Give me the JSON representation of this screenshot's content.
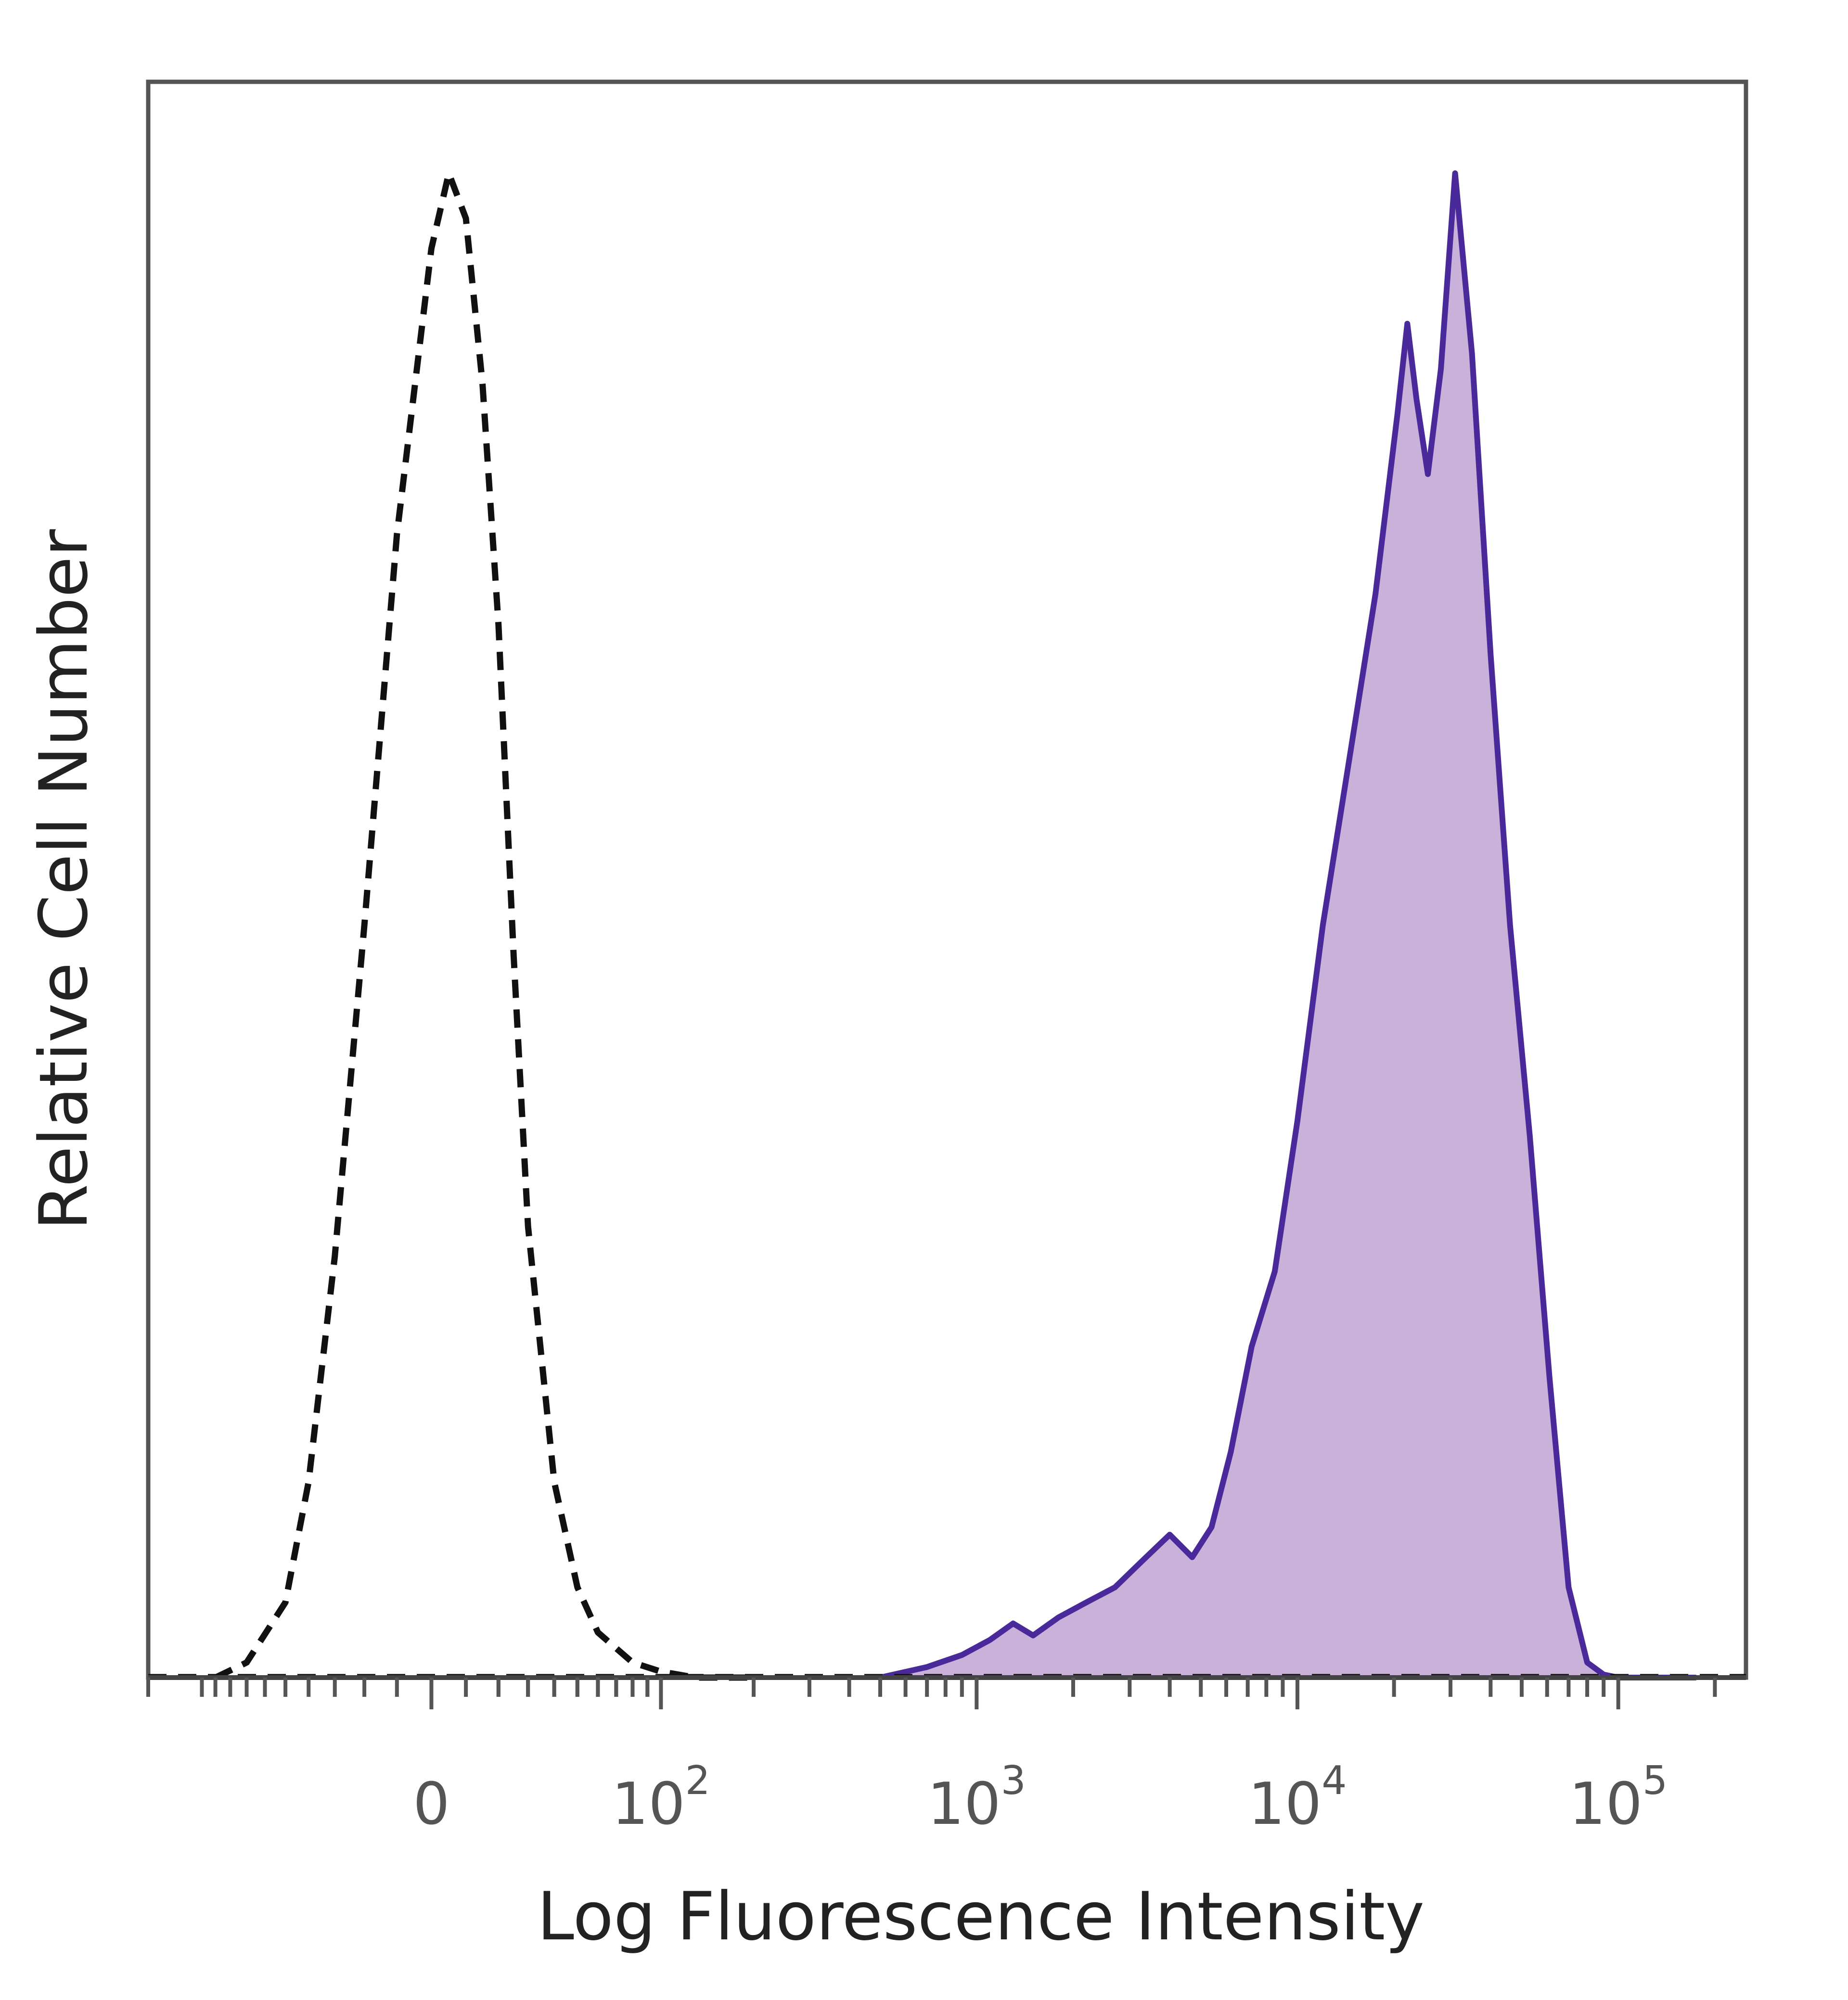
{
  "chart_data": {
    "type": "area",
    "title": "",
    "xlabel": "Log Fluorescence Intensity",
    "ylabel": "Relative Cell Number",
    "x_scale": "biexponential",
    "xlim": [
      -150,
      250000
    ],
    "ylim": [
      0,
      100
    ],
    "grid": false,
    "legend": "none",
    "x_ticks": [
      {
        "value": 0,
        "base": "0",
        "exp": ""
      },
      {
        "value": 100,
        "base": "10",
        "exp": "2"
      },
      {
        "value": 1000,
        "base": "10",
        "exp": "3"
      },
      {
        "value": 10000,
        "base": "10",
        "exp": "4"
      },
      {
        "value": 100000,
        "base": "10",
        "exp": "5"
      }
    ],
    "series": [
      {
        "style": "dashed-outline",
        "color": "#111111",
        "x": [
          -90,
          -70,
          -50,
          -40,
          -30,
          -20,
          -10,
          0,
          5,
          10,
          15,
          20,
          25,
          30,
          40,
          50,
          60,
          80,
          100,
          130,
          200
        ],
        "values": [
          0,
          1,
          5,
          13,
          28,
          50,
          76,
          95,
          100,
          97,
          86,
          70,
          48,
          30,
          13,
          6,
          3,
          1,
          0.4,
          0,
          0
        ]
      },
      {
        "style": "filled",
        "color": "#4a2a9a",
        "fill": "#c9b1d9",
        "x": [
          500,
          700,
          900,
          1100,
          1300,
          1500,
          1800,
          2200,
          2700,
          3300,
          4000,
          4700,
          5400,
          6200,
          7200,
          8500,
          10000,
          12000,
          14500,
          17500,
          20500,
          22000,
          23500,
          25500,
          28000,
          31000,
          35000,
          40000,
          46000,
          53000,
          61000,
          70000,
          80000,
          90000,
          100000,
          115000,
          130000,
          150000,
          175000
        ],
        "values": [
          0,
          0.7,
          1.5,
          2.5,
          3.6,
          2.8,
          4,
          5,
          6,
          7.8,
          9.5,
          8,
          10,
          15,
          22,
          27,
          37,
          50,
          61,
          72,
          84,
          90,
          85,
          80,
          87,
          100,
          88,
          68,
          50,
          36,
          20,
          6,
          1,
          0.2,
          0,
          0,
          0,
          0,
          0
        ]
      }
    ]
  }
}
